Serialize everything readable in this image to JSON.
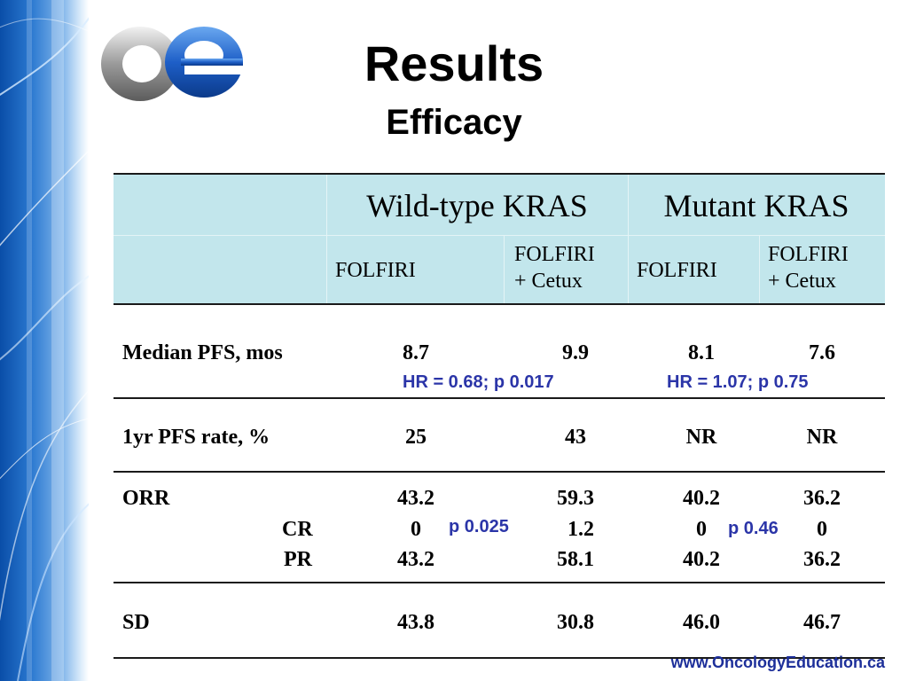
{
  "slide": {
    "title": "Results",
    "subtitle": "Efficacy",
    "footer_url": "www.OncologyEducation.ca",
    "logo_icon": "oe-logo-icon"
  },
  "table": {
    "groups": [
      "Wild-type KRAS",
      "Mutant KRAS"
    ],
    "subheaders": [
      "FOLFIRI",
      "FOLFIRI\n+ Cetux",
      "FOLFIRI",
      "FOLFIRI\n+ Cetux"
    ],
    "rows": {
      "pfs": {
        "label": "Median PFS, mos",
        "values": [
          "8.7",
          "9.9",
          "8.1",
          "7.6"
        ],
        "stats": [
          "HR = 0.68; p 0.017",
          "HR = 1.07; p 0.75"
        ]
      },
      "pfs1yr": {
        "label": "1yr PFS rate, %",
        "values": [
          "25",
          "43",
          "NR",
          "NR"
        ]
      },
      "orr": {
        "label": "ORR",
        "values": [
          "43.2",
          "59.3",
          "40.2",
          "36.2"
        ]
      },
      "cr": {
        "label": "CR",
        "values": [
          "0",
          "1.2",
          "0",
          "0"
        ],
        "stats": [
          "p 0.025",
          "p 0.46"
        ]
      },
      "pr": {
        "label": "PR",
        "values": [
          "43.2",
          "58.1",
          "40.2",
          "36.2"
        ]
      },
      "sd": {
        "label": "SD",
        "values": [
          "43.8",
          "30.8",
          "46.0",
          "46.7"
        ]
      }
    }
  },
  "colors": {
    "header_band": "#c2e6ec",
    "stat_text": "#2b35a8",
    "footer_text": "#1d2f9a",
    "side_strip": "#1a5fb8"
  }
}
